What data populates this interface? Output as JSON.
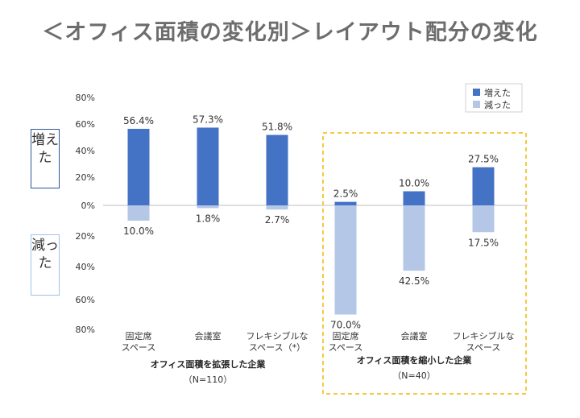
{
  "page": {
    "title": "＜オフィス面積の変化別＞レイアウト配分の変化",
    "side_labels": {
      "increase": "増えた",
      "decrease": "減った"
    }
  },
  "chart_data": {
    "type": "bar",
    "ylim": [
      -80,
      80
    ],
    "y_ticks": [
      {
        "value": 80,
        "label": "80%"
      },
      {
        "value": 60,
        "label": "60%"
      },
      {
        "value": 40,
        "label": "40%"
      },
      {
        "value": 20,
        "label": "20%"
      },
      {
        "value": 0,
        "label": "0%"
      },
      {
        "value": -20,
        "label": "20%"
      },
      {
        "value": -40,
        "label": "40%"
      },
      {
        "value": -60,
        "label": "60%"
      },
      {
        "value": -80,
        "label": "80%"
      }
    ],
    "categories": [
      [
        "固定席",
        "スペース"
      ],
      [
        "会議室"
      ],
      [
        "フレキシブルな",
        "スペース（*）"
      ],
      [
        "固定席",
        "スペース"
      ],
      [
        "会議室"
      ],
      [
        "フレキシブルな",
        "スペース"
      ]
    ],
    "series": [
      {
        "name": "増えた",
        "color": "#4472c4",
        "values": [
          56.4,
          57.3,
          51.8,
          2.5,
          10.0,
          27.5
        ],
        "labels": [
          "56.4%",
          "57.3%",
          "51.8%",
          "2.5%",
          "10.0%",
          "27.5%"
        ]
      },
      {
        "name": "減った",
        "color": "#b4c7e7",
        "values": [
          -10.0,
          -1.8,
          -2.7,
          -70.0,
          -42.5,
          -17.5
        ],
        "labels": [
          "10.0%",
          "1.8%",
          "2.7%",
          "70.0%",
          "42.5%",
          "17.5%"
        ]
      }
    ],
    "groups": [
      {
        "label": "オフィス面積を拡張した企業",
        "n": "（N=110）"
      },
      {
        "label": "オフィス面積を縮小した企業",
        "n": "（N=40）"
      }
    ],
    "legend_position": "top-right",
    "highlight_color": "#f2b700"
  }
}
